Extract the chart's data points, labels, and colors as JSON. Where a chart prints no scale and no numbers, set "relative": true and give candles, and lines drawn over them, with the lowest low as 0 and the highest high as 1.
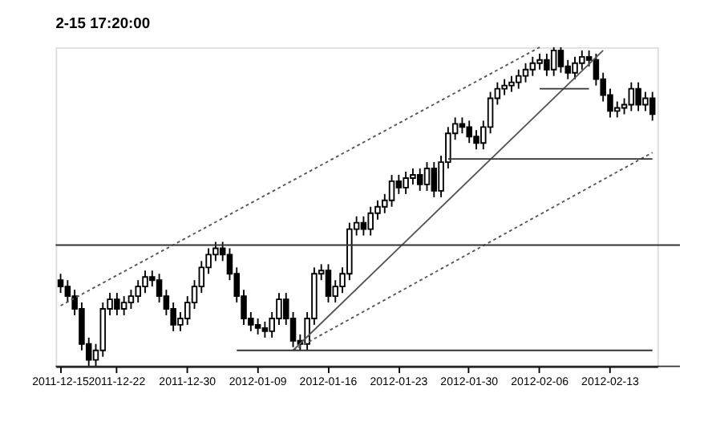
{
  "chart_data": {
    "type": "candlestick",
    "relative": true,
    "annotations": [
      "2-15 17:20:00"
    ],
    "categories": [
      "2011-12-15",
      null,
      null,
      null,
      null,
      null,
      null,
      null,
      "2011-12-22",
      null,
      null,
      null,
      null,
      null,
      null,
      null,
      null,
      null,
      "2011-12-30",
      null,
      null,
      null,
      null,
      null,
      null,
      null,
      null,
      null,
      "2012-01-09",
      null,
      null,
      null,
      null,
      null,
      null,
      null,
      null,
      null,
      "2012-01-16",
      null,
      null,
      null,
      null,
      null,
      null,
      null,
      null,
      null,
      "2012-01-23",
      null,
      null,
      null,
      null,
      null,
      null,
      null,
      null,
      null,
      "2012-01-30",
      null,
      null,
      null,
      null,
      null,
      null,
      null,
      null,
      null,
      "2012-02-06",
      null,
      null,
      null,
      null,
      null,
      null,
      null,
      null,
      null,
      "2012-02-13",
      null,
      null,
      null,
      null,
      null,
      null
    ],
    "color": "#000000",
    "ohlc": [
      [
        0.27,
        0.29,
        0.23,
        0.25
      ],
      [
        0.25,
        0.27,
        0.2,
        0.22
      ],
      [
        0.22,
        0.24,
        0.16,
        0.18
      ],
      [
        0.18,
        0.2,
        0.05,
        0.07
      ],
      [
        0.07,
        0.09,
        0.0,
        0.02
      ],
      [
        0.02,
        0.07,
        0.0,
        0.05
      ],
      [
        0.05,
        0.2,
        0.03,
        0.18
      ],
      [
        0.18,
        0.23,
        0.16,
        0.21
      ],
      [
        0.21,
        0.23,
        0.16,
        0.18
      ],
      [
        0.18,
        0.22,
        0.16,
        0.2
      ],
      [
        0.2,
        0.24,
        0.18,
        0.22
      ],
      [
        0.22,
        0.27,
        0.2,
        0.25
      ],
      [
        0.25,
        0.3,
        0.23,
        0.28
      ],
      [
        0.28,
        0.3,
        0.25,
        0.27
      ],
      [
        0.27,
        0.29,
        0.2,
        0.22
      ],
      [
        0.22,
        0.24,
        0.16,
        0.18
      ],
      [
        0.18,
        0.2,
        0.11,
        0.13
      ],
      [
        0.13,
        0.17,
        0.11,
        0.15
      ],
      [
        0.15,
        0.22,
        0.13,
        0.2
      ],
      [
        0.2,
        0.27,
        0.18,
        0.25
      ],
      [
        0.25,
        0.33,
        0.23,
        0.31
      ],
      [
        0.31,
        0.37,
        0.29,
        0.35
      ],
      [
        0.35,
        0.39,
        0.33,
        0.37
      ],
      [
        0.37,
        0.39,
        0.33,
        0.35
      ],
      [
        0.35,
        0.37,
        0.27,
        0.29
      ],
      [
        0.29,
        0.31,
        0.2,
        0.22
      ],
      [
        0.22,
        0.24,
        0.13,
        0.15
      ],
      [
        0.15,
        0.17,
        0.11,
        0.13
      ],
      [
        0.13,
        0.15,
        0.1,
        0.12
      ],
      [
        0.12,
        0.14,
        0.09,
        0.11
      ],
      [
        0.11,
        0.17,
        0.09,
        0.15
      ],
      [
        0.15,
        0.23,
        0.13,
        0.21
      ],
      [
        0.21,
        0.23,
        0.13,
        0.15
      ],
      [
        0.15,
        0.17,
        0.06,
        0.08
      ],
      [
        0.08,
        0.1,
        0.05,
        0.07
      ],
      [
        0.07,
        0.17,
        0.05,
        0.15
      ],
      [
        0.15,
        0.31,
        0.13,
        0.29
      ],
      [
        0.29,
        0.32,
        0.27,
        0.3
      ],
      [
        0.3,
        0.32,
        0.2,
        0.22
      ],
      [
        0.22,
        0.27,
        0.2,
        0.25
      ],
      [
        0.25,
        0.31,
        0.23,
        0.29
      ],
      [
        0.29,
        0.45,
        0.27,
        0.43
      ],
      [
        0.43,
        0.47,
        0.41,
        0.45
      ],
      [
        0.45,
        0.47,
        0.41,
        0.43
      ],
      [
        0.43,
        0.5,
        0.41,
        0.48
      ],
      [
        0.48,
        0.52,
        0.46,
        0.5
      ],
      [
        0.5,
        0.54,
        0.48,
        0.52
      ],
      [
        0.52,
        0.6,
        0.5,
        0.58
      ],
      [
        0.58,
        0.6,
        0.54,
        0.56
      ],
      [
        0.56,
        0.61,
        0.54,
        0.59
      ],
      [
        0.59,
        0.62,
        0.57,
        0.6
      ],
      [
        0.6,
        0.62,
        0.55,
        0.57
      ],
      [
        0.57,
        0.64,
        0.55,
        0.62
      ],
      [
        0.62,
        0.64,
        0.53,
        0.55
      ],
      [
        0.55,
        0.66,
        0.53,
        0.64
      ],
      [
        0.64,
        0.75,
        0.62,
        0.73
      ],
      [
        0.73,
        0.78,
        0.71,
        0.76
      ],
      [
        0.76,
        0.78,
        0.73,
        0.75
      ],
      [
        0.75,
        0.77,
        0.7,
        0.72
      ],
      [
        0.72,
        0.74,
        0.68,
        0.7
      ],
      [
        0.7,
        0.77,
        0.68,
        0.75
      ],
      [
        0.75,
        0.86,
        0.73,
        0.84
      ],
      [
        0.84,
        0.89,
        0.82,
        0.87
      ],
      [
        0.87,
        0.9,
        0.85,
        0.88
      ],
      [
        0.88,
        0.91,
        0.86,
        0.89
      ],
      [
        0.89,
        0.93,
        0.87,
        0.91
      ],
      [
        0.91,
        0.95,
        0.89,
        0.93
      ],
      [
        0.93,
        0.97,
        0.91,
        0.95
      ],
      [
        0.95,
        0.98,
        0.93,
        0.96
      ],
      [
        0.96,
        0.98,
        0.91,
        0.93
      ],
      [
        0.93,
        1.0,
        0.91,
        0.99
      ],
      [
        0.99,
        1.0,
        0.92,
        0.94
      ],
      [
        0.94,
        0.96,
        0.9,
        0.92
      ],
      [
        0.92,
        0.97,
        0.9,
        0.95
      ],
      [
        0.95,
        0.99,
        0.93,
        0.97
      ],
      [
        0.97,
        0.99,
        0.94,
        0.96
      ],
      [
        0.96,
        0.98,
        0.88,
        0.9
      ],
      [
        0.9,
        0.92,
        0.83,
        0.85
      ],
      [
        0.85,
        0.87,
        0.78,
        0.8
      ],
      [
        0.8,
        0.83,
        0.78,
        0.81
      ],
      [
        0.81,
        0.84,
        0.79,
        0.82
      ],
      [
        0.82,
        0.89,
        0.8,
        0.87
      ],
      [
        0.87,
        0.89,
        0.8,
        0.82
      ],
      [
        0.82,
        0.86,
        0.8,
        0.84
      ],
      [
        0.84,
        0.86,
        0.77,
        0.79
      ]
    ],
    "series": [
      {
        "type": "line",
        "color": "#555555",
        "line_style": "dotted",
        "values": [
          0.19,
          null,
          null,
          null,
          null,
          null,
          null,
          null,
          null,
          null,
          null,
          null,
          null,
          null,
          null,
          null,
          null,
          null,
          null,
          null,
          null,
          null,
          null,
          null,
          null,
          null,
          null,
          null,
          null,
          null,
          null,
          null,
          null,
          null,
          null,
          null,
          null,
          null,
          null,
          null,
          null,
          null,
          null,
          null,
          null,
          null,
          null,
          null,
          null,
          null,
          null,
          null,
          null,
          null,
          null,
          null,
          null,
          null,
          null,
          null,
          null,
          null,
          null,
          null,
          null,
          null,
          null,
          null,
          1.0,
          null,
          null,
          null,
          null,
          null,
          null,
          null,
          null,
          null,
          null,
          null,
          null,
          null,
          null,
          null,
          null
        ]
      },
      {
        "type": "line",
        "color": "#555555",
        "line_style": "solid",
        "values": [
          null,
          null,
          null,
          null,
          null,
          null,
          null,
          null,
          null,
          null,
          null,
          null,
          null,
          null,
          null,
          null,
          null,
          null,
          null,
          null,
          null,
          null,
          null,
          null,
          null,
          null,
          null,
          null,
          null,
          null,
          null,
          null,
          null,
          0.05,
          null,
          null,
          null,
          null,
          null,
          null,
          null,
          null,
          null,
          null,
          null,
          null,
          null,
          null,
          null,
          null,
          null,
          null,
          null,
          null,
          null,
          null,
          null,
          null,
          null,
          null,
          null,
          null,
          null,
          null,
          null,
          null,
          null,
          null,
          null,
          null,
          null,
          null,
          null,
          null,
          null,
          null,
          null,
          0.99,
          null,
          null,
          null,
          null,
          null,
          null,
          null
        ]
      },
      {
        "type": "line",
        "color": "#555555",
        "line_style": "dotted",
        "values": [
          null,
          null,
          null,
          null,
          null,
          null,
          null,
          null,
          null,
          null,
          null,
          null,
          null,
          null,
          null,
          null,
          null,
          null,
          null,
          null,
          null,
          null,
          null,
          null,
          null,
          null,
          null,
          null,
          null,
          null,
          null,
          null,
          null,
          0.05,
          null,
          null,
          null,
          null,
          null,
          null,
          null,
          null,
          null,
          null,
          null,
          null,
          null,
          null,
          null,
          null,
          null,
          null,
          null,
          null,
          null,
          null,
          null,
          null,
          null,
          null,
          null,
          null,
          null,
          null,
          null,
          null,
          null,
          null,
          null,
          null,
          null,
          null,
          null,
          null,
          null,
          null,
          null,
          null,
          null,
          null,
          null,
          null,
          null,
          null,
          0.67
        ]
      },
      {
        "type": "line",
        "color": "#333333",
        "line_style": "solid",
        "values": [
          null,
          null,
          null,
          null,
          null,
          null,
          null,
          null,
          null,
          null,
          null,
          null,
          null,
          null,
          null,
          null,
          null,
          null,
          null,
          null,
          null,
          null,
          null,
          null,
          null,
          0.05,
          null,
          null,
          null,
          null,
          null,
          null,
          null,
          null,
          null,
          null,
          null,
          null,
          null,
          null,
          null,
          null,
          null,
          null,
          null,
          null,
          null,
          null,
          null,
          null,
          null,
          null,
          null,
          null,
          null,
          null,
          null,
          null,
          null,
          null,
          null,
          null,
          null,
          null,
          null,
          null,
          null,
          null,
          null,
          null,
          null,
          null,
          null,
          null,
          null,
          null,
          null,
          null,
          null,
          null,
          null,
          null,
          null,
          null,
          0.05
        ]
      },
      {
        "type": "line",
        "color": "#333333",
        "line_style": "solid",
        "values": [
          null,
          null,
          null,
          null,
          null,
          null,
          null,
          null,
          null,
          null,
          null,
          null,
          null,
          null,
          null,
          null,
          null,
          null,
          null,
          null,
          null,
          null,
          null,
          null,
          null,
          null,
          null,
          null,
          null,
          null,
          null,
          null,
          null,
          null,
          null,
          null,
          null,
          null,
          null,
          null,
          null,
          null,
          null,
          null,
          null,
          null,
          null,
          null,
          null,
          null,
          null,
          null,
          null,
          null,
          null,
          0.65,
          null,
          null,
          null,
          null,
          null,
          null,
          null,
          null,
          null,
          null,
          null,
          null,
          null,
          null,
          null,
          null,
          null,
          null,
          null,
          null,
          null,
          null,
          null,
          null,
          null,
          null,
          null,
          null,
          0.65
        ]
      },
      {
        "type": "line",
        "color": "#333333",
        "line_style": "solid",
        "values": [
          null,
          null,
          null,
          null,
          null,
          null,
          null,
          null,
          null,
          null,
          null,
          null,
          null,
          null,
          null,
          null,
          null,
          null,
          null,
          null,
          null,
          null,
          null,
          null,
          null,
          null,
          null,
          null,
          null,
          null,
          null,
          null,
          null,
          null,
          null,
          null,
          null,
          null,
          null,
          null,
          null,
          null,
          null,
          null,
          null,
          null,
          null,
          null,
          null,
          null,
          null,
          null,
          null,
          null,
          null,
          null,
          null,
          null,
          null,
          null,
          null,
          null,
          null,
          null,
          null,
          null,
          null,
          null,
          0.87,
          null,
          null,
          null,
          null,
          null,
          null,
          0.87,
          null,
          null,
          null,
          null,
          null,
          null,
          null,
          null,
          null
        ]
      }
    ],
    "ref_lines": [
      {
        "axis": "y",
        "value": 0.38,
        "color": "#333333"
      },
      {
        "axis": "y",
        "value": 0.0,
        "color": "#333333"
      }
    ]
  }
}
